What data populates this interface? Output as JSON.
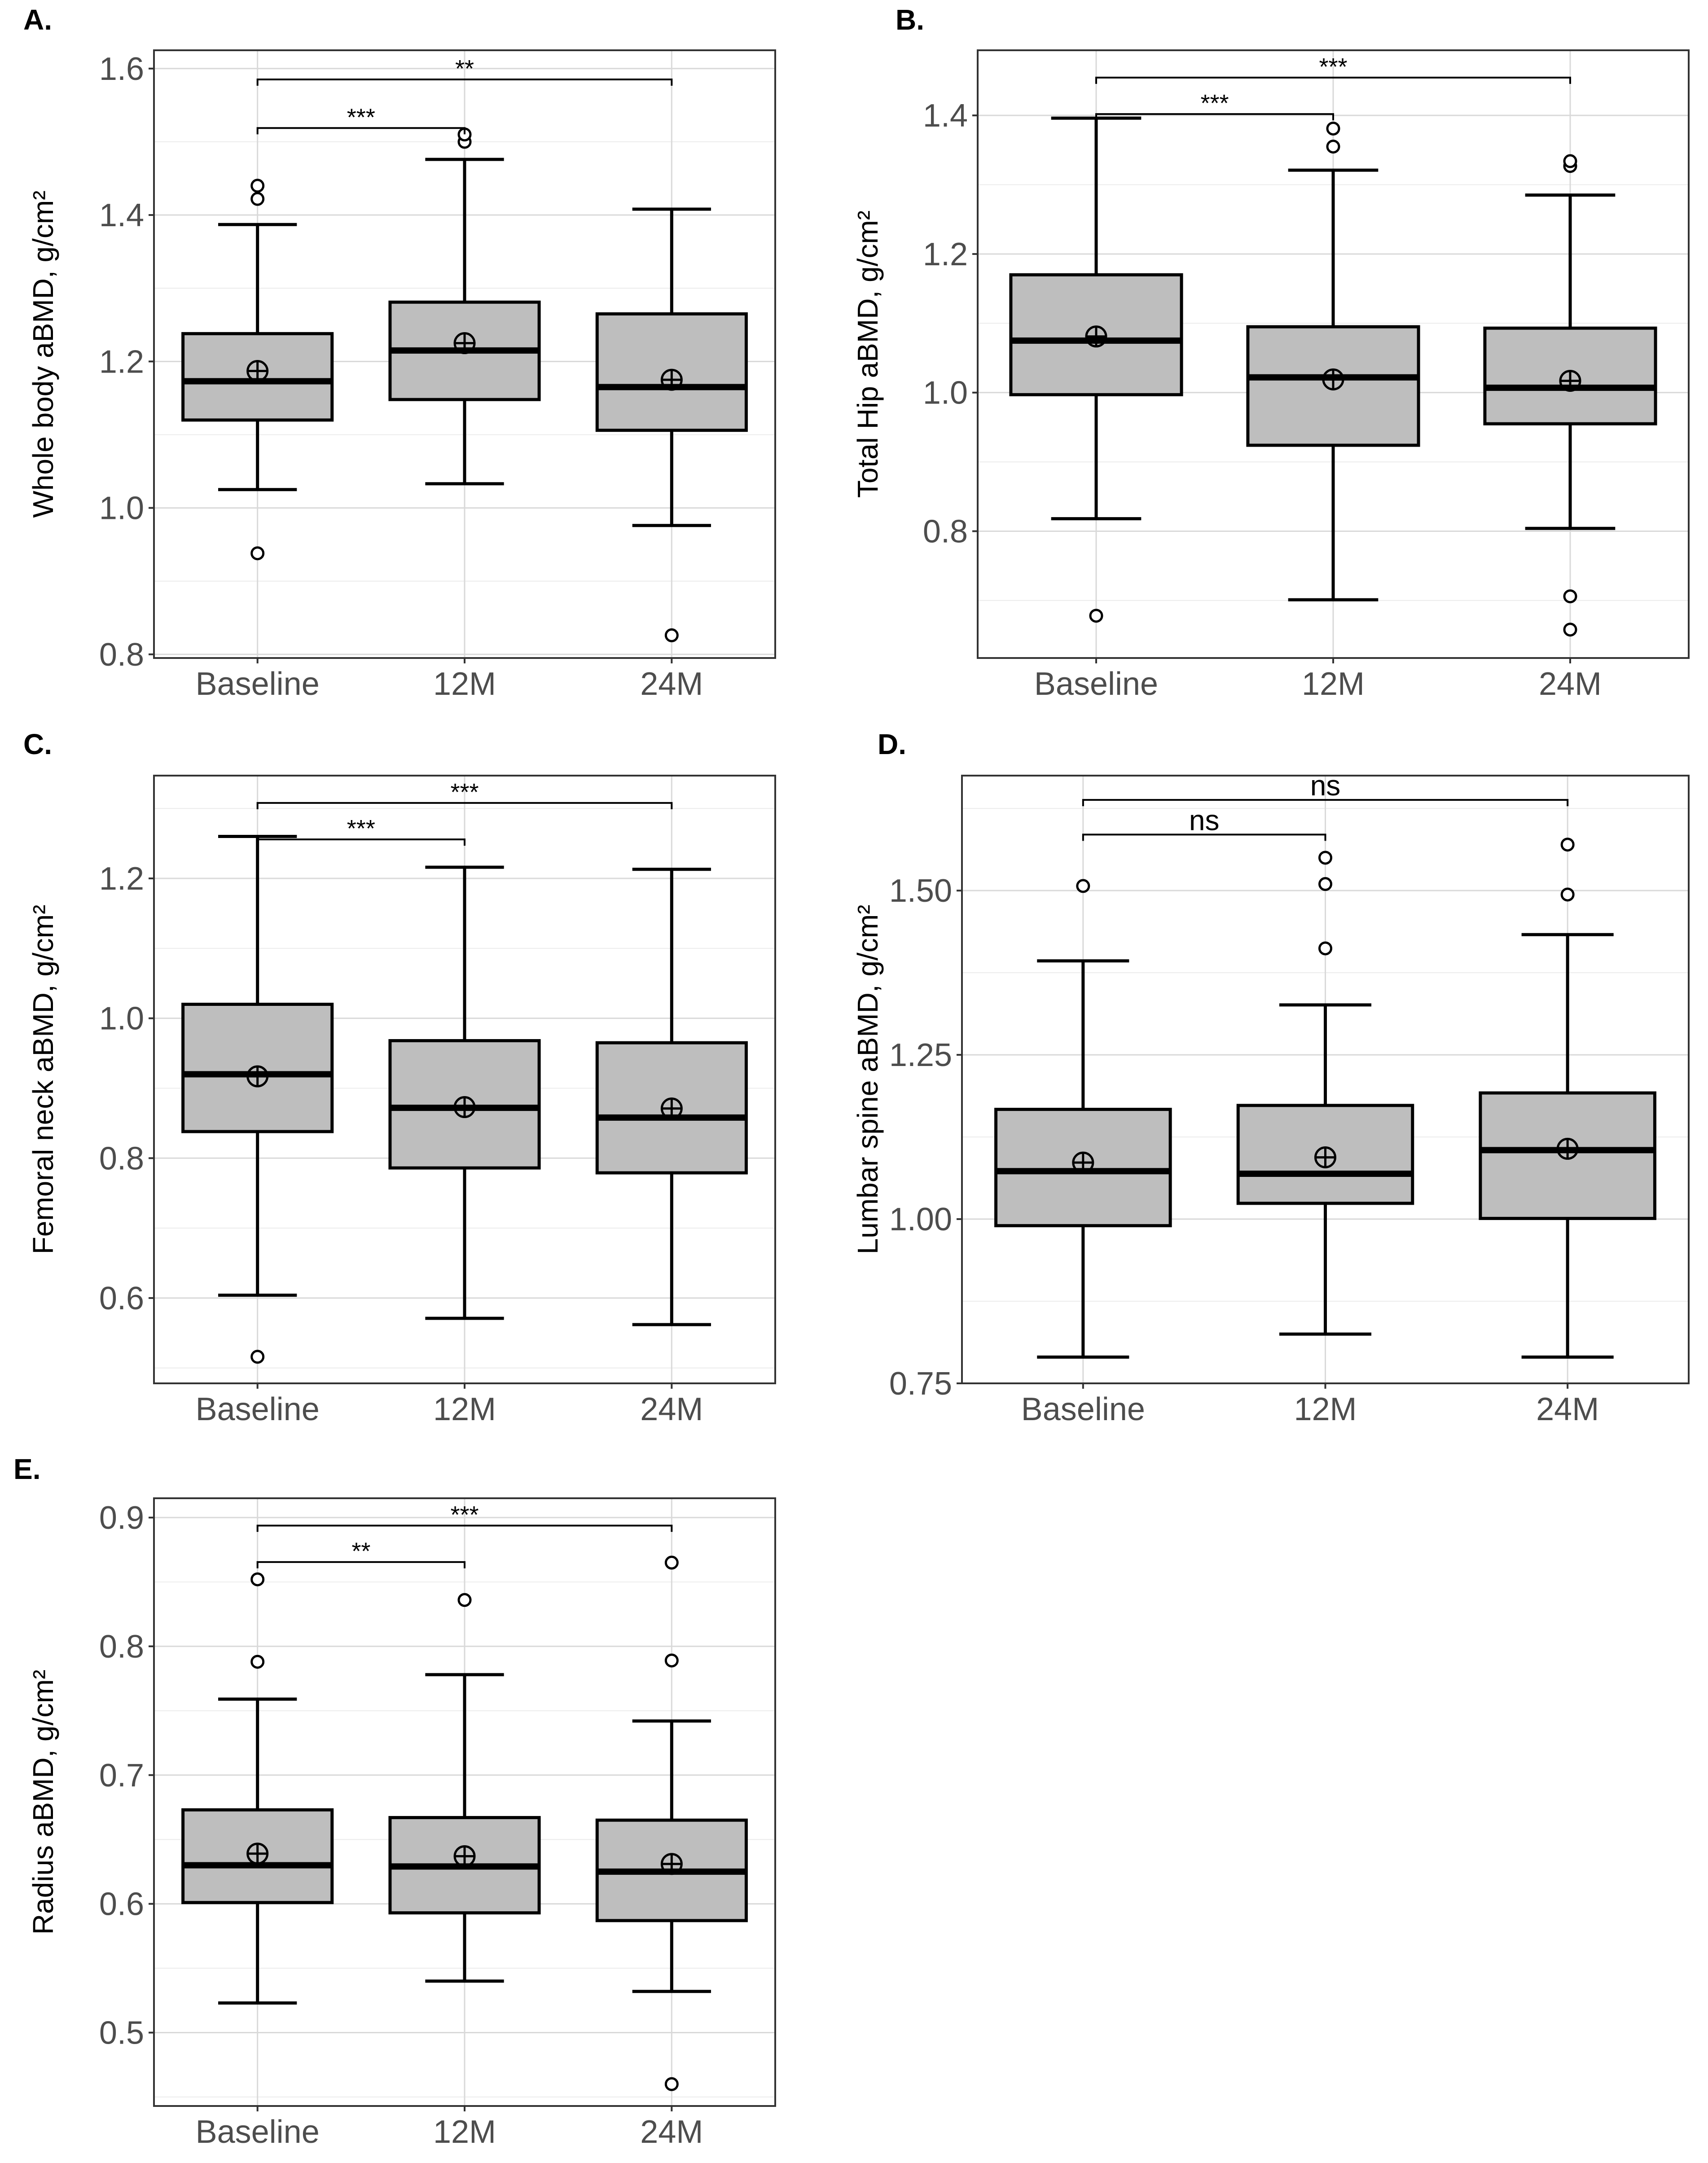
{
  "chart_data": [
    {
      "type": "box",
      "panel_label": "A.",
      "ylabel": "Whole body aBMD, g/cm²",
      "categories": [
        "Baseline",
        "12M",
        "24M"
      ],
      "ylim": [
        0.795,
        1.625
      ],
      "yticks": [
        0.8,
        1.0,
        1.2,
        1.4,
        1.6
      ],
      "ytick_labels": [
        "0.8",
        "1.0",
        "1.2",
        "1.4",
        "1.6"
      ],
      "boxes": [
        {
          "q1": 1.12,
          "median": 1.173,
          "q3": 1.238,
          "whisker_low": 1.025,
          "whisker_high": 1.387,
          "mean": 1.187,
          "outliers": [
            0.938,
            1.422,
            1.44
          ]
        },
        {
          "q1": 1.148,
          "median": 1.215,
          "q3": 1.281,
          "whisker_low": 1.033,
          "whisker_high": 1.476,
          "mean": 1.225,
          "outliers": [
            1.5,
            1.51
          ]
        },
        {
          "q1": 1.106,
          "median": 1.165,
          "q3": 1.265,
          "whisker_low": 0.976,
          "whisker_high": 1.408,
          "mean": 1.175,
          "outliers": [
            0.826
          ]
        }
      ],
      "comparisons": [
        {
          "from": "Baseline",
          "to": "12M",
          "label": "***"
        },
        {
          "from": "Baseline",
          "to": "24M",
          "label": "**"
        }
      ]
    },
    {
      "type": "box",
      "panel_label": "B.",
      "ylabel": "Total Hip aBMD, g/cm²",
      "categories": [
        "Baseline",
        "12M",
        "24M"
      ],
      "ylim": [
        0.617,
        1.494
      ],
      "yticks": [
        0.8,
        1.0,
        1.2,
        1.4
      ],
      "ytick_labels": [
        "0.8",
        "1.0",
        "1.2",
        "1.4"
      ],
      "boxes": [
        {
          "q1": 0.997,
          "median": 1.075,
          "q3": 1.17,
          "whisker_low": 0.818,
          "whisker_high": 1.396,
          "mean": 1.081,
          "outliers": [
            0.678
          ]
        },
        {
          "q1": 0.924,
          "median": 1.022,
          "q3": 1.095,
          "whisker_low": 0.701,
          "whisker_high": 1.321,
          "mean": 1.019,
          "outliers": [
            1.355,
            1.381
          ]
        },
        {
          "q1": 0.955,
          "median": 1.007,
          "q3": 1.093,
          "whisker_low": 0.804,
          "whisker_high": 1.285,
          "mean": 1.017,
          "outliers": [
            0.658,
            0.706,
            1.327,
            1.334
          ]
        }
      ],
      "comparisons": [
        {
          "from": "Baseline",
          "to": "12M",
          "label": "***"
        },
        {
          "from": "Baseline",
          "to": "24M",
          "label": "***"
        }
      ]
    },
    {
      "type": "box",
      "panel_label": "C.",
      "ylabel": "Femoral neck aBMD, g/cm²",
      "categories": [
        "Baseline",
        "12M",
        "24M"
      ],
      "ylim": [
        0.478,
        1.347
      ],
      "yticks": [
        0.6,
        0.8,
        1.0,
        1.2
      ],
      "ytick_labels": [
        "0.6",
        "0.8",
        "1.0",
        "1.2"
      ],
      "boxes": [
        {
          "q1": 0.838,
          "median": 0.92,
          "q3": 1.02,
          "whisker_low": 0.604,
          "whisker_high": 1.26,
          "mean": 0.917,
          "outliers": [
            0.516
          ]
        },
        {
          "q1": 0.786,
          "median": 0.872,
          "q3": 0.968,
          "whisker_low": 0.571,
          "whisker_high": 1.216,
          "mean": 0.873,
          "outliers": []
        },
        {
          "q1": 0.779,
          "median": 0.858,
          "q3": 0.965,
          "whisker_low": 0.562,
          "whisker_high": 1.213,
          "mean": 0.871,
          "outliers": []
        }
      ],
      "comparisons": [
        {
          "from": "Baseline",
          "to": "12M",
          "label": "***"
        },
        {
          "from": "Baseline",
          "to": "24M",
          "label": "***"
        }
      ]
    },
    {
      "type": "box",
      "panel_label": "D.",
      "ylabel": "Lumbar spine aBMD, g/cm²",
      "categories": [
        "Baseline",
        "12M",
        "24M"
      ],
      "ylim": [
        0.75,
        1.675
      ],
      "yticks": [
        0.75,
        1.0,
        1.25,
        1.5
      ],
      "ytick_labels": [
        "0.75",
        "1.00",
        "1.25",
        "1.50"
      ],
      "boxes": [
        {
          "q1": 0.99,
          "median": 1.073,
          "q3": 1.167,
          "whisker_low": 0.79,
          "whisker_high": 1.393,
          "mean": 1.086,
          "outliers": [
            1.507
          ]
        },
        {
          "q1": 1.024,
          "median": 1.069,
          "q3": 1.173,
          "whisker_low": 0.825,
          "whisker_high": 1.326,
          "mean": 1.094,
          "outliers": [
            1.412,
            1.51,
            1.55
          ]
        },
        {
          "q1": 1.001,
          "median": 1.105,
          "q3": 1.192,
          "whisker_low": 0.79,
          "whisker_high": 1.433,
          "mean": 1.107,
          "outliers": [
            1.494,
            1.57
          ]
        }
      ],
      "comparisons": [
        {
          "from": "Baseline",
          "to": "12M",
          "label": "ns"
        },
        {
          "from": "Baseline",
          "to": "24M",
          "label": "ns"
        }
      ]
    },
    {
      "type": "box",
      "panel_label": "E.",
      "ylabel": "Radius aBMD, g/cm²",
      "categories": [
        "Baseline",
        "12M",
        "24M"
      ],
      "ylim": [
        0.443,
        0.915
      ],
      "yticks": [
        0.5,
        0.6,
        0.7,
        0.8,
        0.9
      ],
      "ytick_labels": [
        "0.5",
        "0.6",
        "0.7",
        "0.8",
        "0.9"
      ],
      "boxes": [
        {
          "q1": 0.601,
          "median": 0.63,
          "q3": 0.673,
          "whisker_low": 0.523,
          "whisker_high": 0.759,
          "mean": 0.639,
          "outliers": [
            0.788,
            0.852
          ]
        },
        {
          "q1": 0.593,
          "median": 0.629,
          "q3": 0.667,
          "whisker_low": 0.54,
          "whisker_high": 0.778,
          "mean": 0.637,
          "outliers": [
            0.836
          ]
        },
        {
          "q1": 0.587,
          "median": 0.625,
          "q3": 0.665,
          "whisker_low": 0.532,
          "whisker_high": 0.742,
          "mean": 0.631,
          "outliers": [
            0.46,
            0.789,
            0.865
          ]
        }
      ],
      "comparisons": [
        {
          "from": "Baseline",
          "to": "12M",
          "label": "**"
        },
        {
          "from": "Baseline",
          "to": "24M",
          "label": "***"
        }
      ]
    }
  ]
}
